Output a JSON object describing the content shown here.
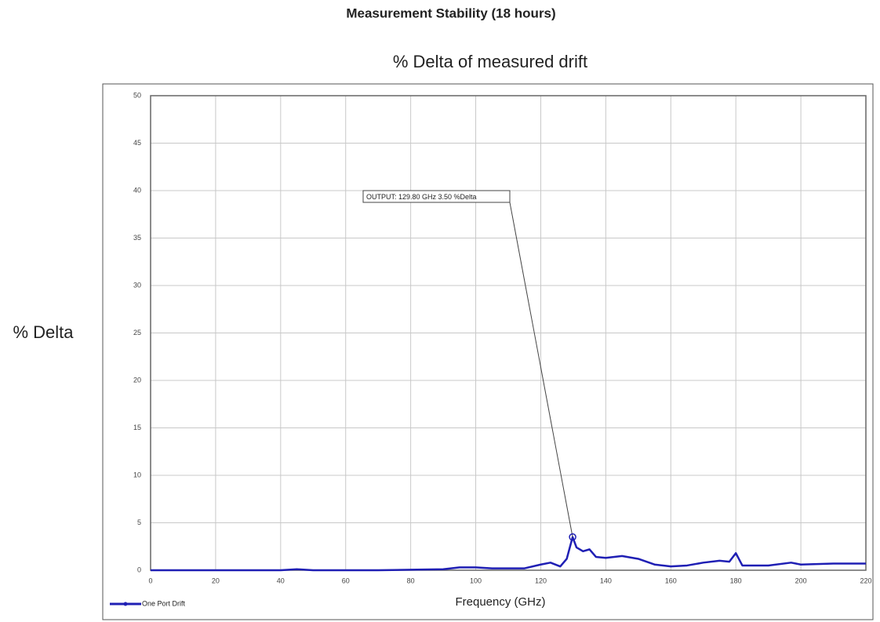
{
  "chart_data": {
    "type": "line",
    "title": "Measurement Stability (18 hours)",
    "subtitle": "% Delta of measured drift",
    "xlabel": "Frequency (GHz)",
    "ylabel": "% Delta",
    "x": [
      0,
      10,
      20,
      30,
      40,
      45,
      50,
      60,
      70,
      80,
      90,
      95,
      100,
      105,
      110,
      115,
      120,
      123,
      126,
      128,
      129.8,
      131,
      133,
      135,
      137,
      140,
      145,
      150,
      155,
      160,
      165,
      170,
      175,
      178,
      180,
      182,
      190,
      197,
      200,
      210,
      220
    ],
    "series": [
      {
        "name": "One Port Drift",
        "color": "#1f1fb4",
        "values": [
          0,
          0,
          0,
          0,
          0,
          0.1,
          0,
          0,
          0,
          0.05,
          0.1,
          0.3,
          0.3,
          0.2,
          0.2,
          0.2,
          0.6,
          0.8,
          0.4,
          1.2,
          3.5,
          2.4,
          2.0,
          2.2,
          1.4,
          1.3,
          1.5,
          1.2,
          0.6,
          0.4,
          0.5,
          0.8,
          1.0,
          0.9,
          1.8,
          0.5,
          0.5,
          0.8,
          0.6,
          0.7,
          0.7
        ]
      }
    ],
    "xlim": [
      0,
      220
    ],
    "xticks": [
      0,
      20,
      40,
      60,
      80,
      100,
      120,
      140,
      160,
      180,
      200,
      220
    ],
    "ylim": [
      0,
      50
    ],
    "yticks": [
      0,
      5,
      10,
      15,
      20,
      25,
      30,
      35,
      40,
      45,
      50
    ],
    "grid": true,
    "legend": "bottom-left",
    "annotation": {
      "text": "OUTPUT: 129.80 GHz 3.50 %Delta",
      "x": 129.8,
      "y": 3.5
    }
  }
}
